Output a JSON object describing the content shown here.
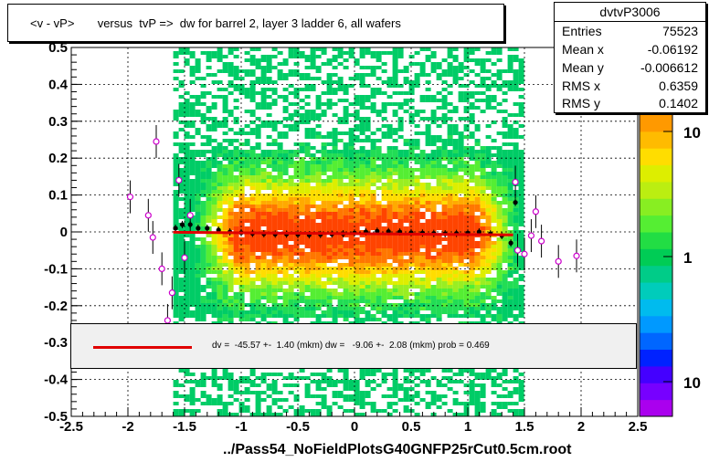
{
  "title": "<v - vP>       versus  tvP =>  dw for barrel 2, layer 3 ladder 6, all wafers",
  "stats": {
    "name": "dvtvP3006",
    "rows": [
      {
        "key": "Entries",
        "value": "75523"
      },
      {
        "key": "Mean x",
        "value": "-0.06192"
      },
      {
        "key": "Mean y",
        "value": "-0.006612"
      },
      {
        "key": "RMS x",
        "value": "0.6359"
      },
      {
        "key": "RMS y",
        "value": "0.1402"
      }
    ]
  },
  "fit_text": "dv =  -45.57 +-  1.40 (mkm) dw =   -9.06 +-  2.08 (mkm) prob = 0.469",
  "footer": "../Pass54_NoFieldPlotsG40GNFP25rCut0.5cm.root",
  "colors": {
    "fit_line": "#e00000",
    "open_points": "#cc00cc"
  },
  "chart_data": {
    "type": "heatmap",
    "title": "<v - vP>       versus  tvP =>  dw for barrel 2, layer 3 ladder 6, all wafers",
    "xlim": [
      -2.5,
      2.5
    ],
    "ylim": [
      -0.5,
      0.5
    ],
    "x_ticks": [
      "-2.5",
      "-2",
      "-1.5",
      "-1",
      "-0.5",
      "0",
      "0.5",
      "1",
      "1.5",
      "2",
      "2.5"
    ],
    "y_ticks": [
      "-0.5",
      "-0.4",
      "-0.3",
      "-0.2",
      "-0.1",
      "0",
      "0.1",
      "0.2",
      "0.3",
      "0.4",
      "0.5"
    ],
    "grid": true,
    "z_scale": "log",
    "z_tick_labels": [
      "10",
      "1",
      "10"
    ],
    "band": {
      "x_range": [
        -1.6,
        1.45
      ],
      "y_center": 0.0,
      "y_rms": 0.14
    },
    "profile_filled": [
      {
        "x": -1.58,
        "y": 0.01
      },
      {
        "x": -1.52,
        "y": 0.02
      },
      {
        "x": -1.45,
        "y": 0.02
      },
      {
        "x": -1.38,
        "y": 0.01
      },
      {
        "x": -1.3,
        "y": 0.01
      },
      {
        "x": -1.2,
        "y": 0.005
      },
      {
        "x": -1.1,
        "y": 0.0
      },
      {
        "x": -1.0,
        "y": -0.002
      },
      {
        "x": -0.9,
        "y": -0.004
      },
      {
        "x": -0.8,
        "y": -0.005
      },
      {
        "x": -0.7,
        "y": -0.006
      },
      {
        "x": -0.6,
        "y": -0.006
      },
      {
        "x": -0.5,
        "y": -0.007
      },
      {
        "x": -0.4,
        "y": -0.008
      },
      {
        "x": -0.3,
        "y": -0.007
      },
      {
        "x": -0.2,
        "y": -0.006
      },
      {
        "x": -0.1,
        "y": -0.005
      },
      {
        "x": 0.0,
        "y": -0.003
      },
      {
        "x": 0.1,
        "y": 0.0
      },
      {
        "x": 0.2,
        "y": 0.002
      },
      {
        "x": 0.3,
        "y": 0.001
      },
      {
        "x": 0.4,
        "y": 0.0
      },
      {
        "x": 0.5,
        "y": -0.002
      },
      {
        "x": 0.6,
        "y": -0.003
      },
      {
        "x": 0.7,
        "y": -0.004
      },
      {
        "x": 0.8,
        "y": -0.005
      },
      {
        "x": 0.9,
        "y": -0.004
      },
      {
        "x": 1.0,
        "y": -0.003
      },
      {
        "x": 1.1,
        "y": 0.0
      },
      {
        "x": 1.2,
        "y": -0.005
      },
      {
        "x": 1.3,
        "y": -0.01
      },
      {
        "x": 1.38,
        "y": -0.03
      },
      {
        "x": 1.42,
        "y": 0.08
      }
    ],
    "profile_open": [
      {
        "x": -1.98,
        "y": 0.095
      },
      {
        "x": -1.82,
        "y": 0.045
      },
      {
        "x": -1.78,
        "y": -0.015
      },
      {
        "x": -1.75,
        "y": 0.245
      },
      {
        "x": -1.7,
        "y": -0.1
      },
      {
        "x": -1.65,
        "y": -0.24
      },
      {
        "x": -1.61,
        "y": -0.165
      },
      {
        "x": -1.55,
        "y": 0.14
      },
      {
        "x": -1.5,
        "y": -0.07
      },
      {
        "x": -1.45,
        "y": 0.045
      },
      {
        "x": 1.42,
        "y": 0.135
      },
      {
        "x": 1.44,
        "y": -0.05
      },
      {
        "x": 1.5,
        "y": -0.06
      },
      {
        "x": 1.56,
        "y": -0.01
      },
      {
        "x": 1.6,
        "y": 0.055
      },
      {
        "x": 1.65,
        "y": -0.025
      },
      {
        "x": 1.8,
        "y": -0.08
      },
      {
        "x": 1.96,
        "y": -0.065
      }
    ],
    "fit_line": {
      "x": [
        -1.6,
        1.4
      ],
      "y": [
        -0.001,
        -0.008
      ]
    }
  }
}
